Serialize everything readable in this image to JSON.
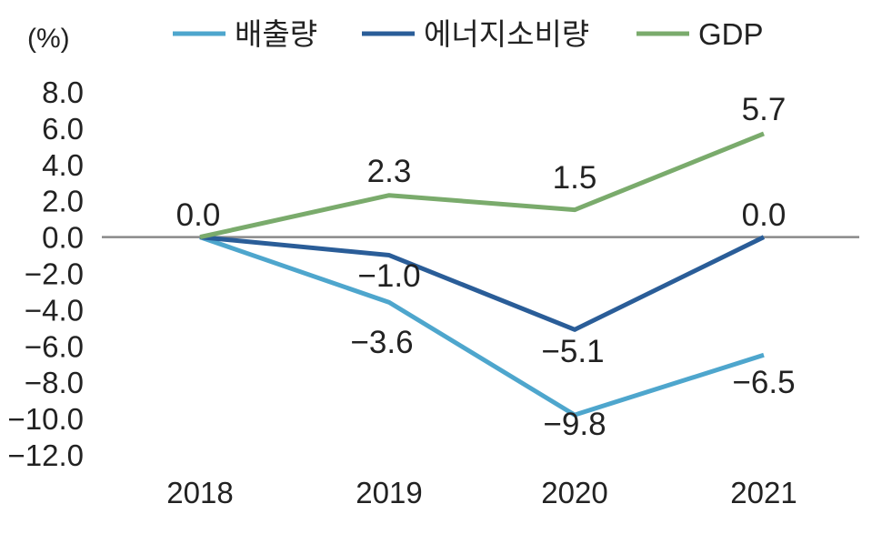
{
  "chart_data": {
    "type": "line",
    "categories": [
      "2018",
      "2019",
      "2020",
      "2021"
    ],
    "unit_label": "(%)",
    "ylim": [
      -12.0,
      8.0
    ],
    "yticks": [
      "8.0",
      "6.0",
      "4.0",
      "2.0",
      "0.0",
      "-2.0",
      "-4.0",
      "-6.0",
      "-8.0",
      "-10.0",
      "-12.0"
    ],
    "ytick_values": [
      8,
      6,
      4,
      2,
      0,
      -2,
      -4,
      -6,
      -8,
      -10,
      -12
    ],
    "series": [
      {
        "name": "배출량",
        "color": "#4ea6cd",
        "values": [
          0.0,
          -3.6,
          -9.8,
          -6.5
        ],
        "labels": [
          "",
          "-3.6",
          "-9.8",
          "-6.5"
        ]
      },
      {
        "name": "에너지소비량",
        "color": "#2a5d98",
        "values": [
          0.0,
          -1.0,
          -5.1,
          0.0
        ],
        "labels": [
          "",
          "-1.0",
          "-5.1",
          "0.0"
        ]
      },
      {
        "name": "GDP",
        "color": "#7aab6c",
        "values": [
          0.0,
          2.3,
          1.5,
          5.7
        ],
        "labels": [
          "0.0",
          "2.3",
          "1.5",
          "5.7"
        ]
      }
    ],
    "zero_line_color": "#8a8a8a",
    "grid": false,
    "legend_position": "top"
  }
}
